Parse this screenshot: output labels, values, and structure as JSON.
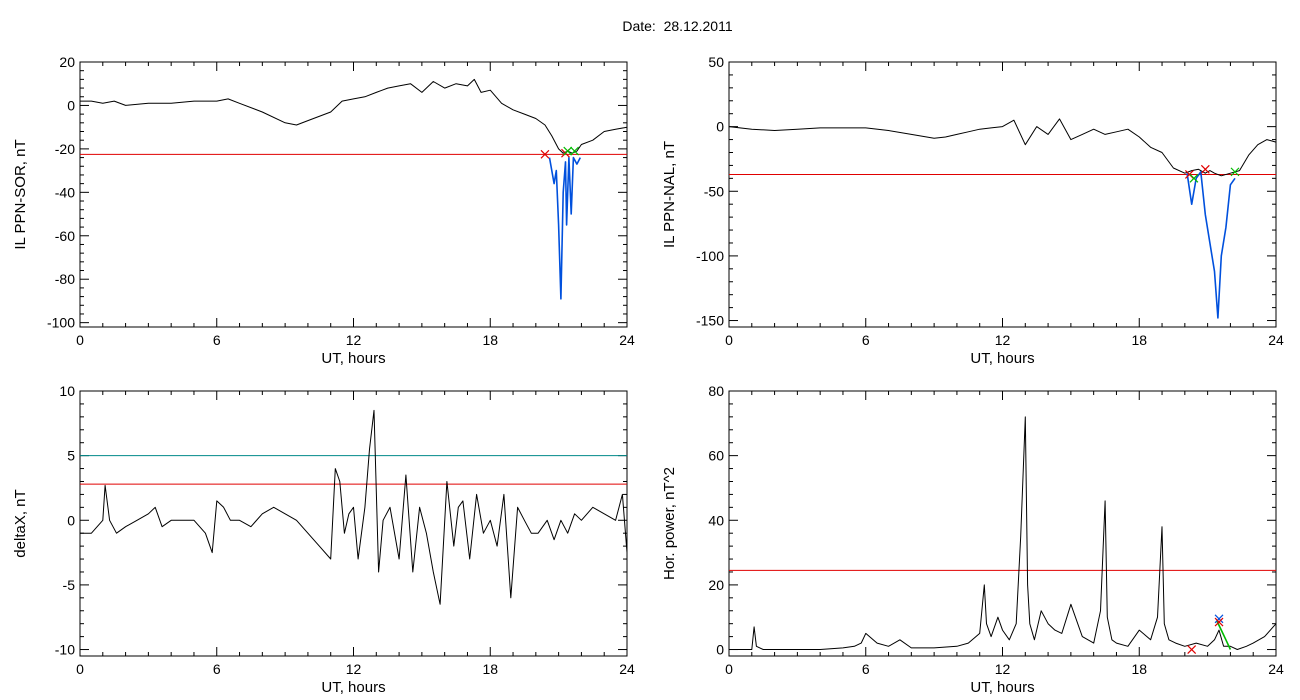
{
  "figure": {
    "title": "Date:  28.12.2011"
  },
  "chart_data": [
    {
      "type": "line",
      "ylabel": "IL PPN-SOR, nT",
      "xlabel": "UT, hours",
      "xlim": [
        0,
        24
      ],
      "ylim": [
        -102,
        20
      ],
      "xticks": [
        0,
        6,
        12,
        18,
        24
      ],
      "yticks": [
        20,
        0,
        -20,
        -40,
        -60,
        -80,
        -100
      ],
      "thresholds": [
        {
          "value": -22.5,
          "color": "#e00000"
        }
      ],
      "series": [
        {
          "color": "#000000",
          "x": [
            0,
            0.5,
            1,
            1.5,
            2,
            3,
            4,
            5,
            6,
            6.5,
            7,
            8,
            9,
            9.5,
            10,
            11,
            11.5,
            12,
            12.5,
            13,
            13.5,
            14,
            14.5,
            15,
            15.5,
            16,
            16.5,
            17,
            17.3,
            17.6,
            18,
            18.5,
            19,
            19.5,
            20,
            20.4,
            20.7,
            21,
            21.2,
            21.4,
            21.6,
            21.8,
            22,
            22.5,
            23,
            23.5,
            24
          ],
          "y": [
            2,
            2,
            1,
            2,
            0,
            1,
            1,
            2,
            2,
            3,
            1,
            -3,
            -8,
            -9,
            -7,
            -3,
            2,
            3,
            4,
            6,
            8,
            9,
            10,
            6,
            11,
            8,
            10,
            9,
            12,
            6,
            7,
            1,
            -2,
            -4,
            -6,
            -9,
            -14,
            -20,
            -22,
            -21,
            -22,
            -21,
            -18,
            -16,
            -12,
            -11,
            -10
          ]
        },
        {
          "color": "#0050dd",
          "x": [
            20.6,
            20.8,
            20.9,
            21.0,
            21.1,
            21.2,
            21.3,
            21.35,
            21.45,
            21.55,
            21.65,
            21.8,
            21.95
          ],
          "y": [
            -24,
            -36,
            -30,
            -55,
            -89,
            -40,
            -26,
            -55,
            -24,
            -50,
            -24,
            -27,
            -24
          ]
        }
      ],
      "markers": [
        {
          "x": 20.4,
          "y": -22.5,
          "color": "#e00000",
          "symbol": "x"
        },
        {
          "x": 21.3,
          "y": -22,
          "color": "#e00000",
          "symbol": "x"
        },
        {
          "x": 21.4,
          "y": -21,
          "color": "#00bb00",
          "symbol": "x"
        },
        {
          "x": 21.7,
          "y": -21,
          "color": "#00bb00",
          "symbol": "x"
        }
      ]
    },
    {
      "type": "line",
      "ylabel": "IL PPN-NAL, nT",
      "xlabel": "UT, hours",
      "xlim": [
        0,
        24
      ],
      "ylim": [
        -155,
        50
      ],
      "xticks": [
        0,
        6,
        12,
        18,
        24
      ],
      "yticks": [
        50,
        0,
        -50,
        -100,
        -150
      ],
      "thresholds": [
        {
          "value": -37,
          "color": "#e00000"
        }
      ],
      "series": [
        {
          "color": "#000000",
          "x": [
            0,
            1,
            2,
            3,
            4,
            5,
            6,
            7,
            8,
            9,
            9.5,
            10,
            10.5,
            11,
            11.5,
            12,
            12.5,
            13,
            13.5,
            14,
            14.5,
            15,
            15.5,
            16,
            16.5,
            17,
            17.5,
            18,
            18.5,
            19,
            19.5,
            20,
            20.3,
            20.6,
            20.9,
            21.1,
            21.3,
            21.6,
            22,
            22.4,
            22.8,
            23.2,
            23.6,
            24
          ],
          "y": [
            0,
            -2,
            -3,
            -2,
            -1,
            -1,
            -1,
            -3,
            -6,
            -9,
            -8,
            -6,
            -4,
            -2,
            -1,
            0,
            5,
            -14,
            0,
            -6,
            6,
            -10,
            -6,
            -2,
            -6,
            -4,
            -2,
            -8,
            -16,
            -20,
            -32,
            -36,
            -34,
            -33,
            -36,
            -34,
            -36,
            -38,
            -36,
            -34,
            -22,
            -14,
            -10,
            -12
          ]
        },
        {
          "color": "#0050dd",
          "x": [
            20.1,
            20.3,
            20.5,
            20.7,
            20.9,
            21.1,
            21.3,
            21.45,
            21.6,
            21.8,
            22.0,
            22.2
          ],
          "y": [
            -36,
            -60,
            -40,
            -35,
            -68,
            -90,
            -112,
            -148,
            -100,
            -78,
            -45,
            -40
          ]
        }
      ],
      "markers": [
        {
          "x": 20.2,
          "y": -37,
          "color": "#e00000",
          "symbol": "x"
        },
        {
          "x": 20.4,
          "y": -40,
          "color": "#00bb00",
          "symbol": "x"
        },
        {
          "x": 20.9,
          "y": -33,
          "color": "#e00000",
          "symbol": "x"
        },
        {
          "x": 22.2,
          "y": -35,
          "color": "#00bb00",
          "symbol": "x"
        }
      ]
    },
    {
      "type": "line",
      "ylabel": "deltaX, nT",
      "xlabel": "UT, hours",
      "xlim": [
        0,
        24
      ],
      "ylim": [
        -10.5,
        10
      ],
      "xticks": [
        0,
        6,
        12,
        18,
        24
      ],
      "yticks": [
        10,
        5,
        0,
        -5,
        -10
      ],
      "thresholds": [
        {
          "value": 5,
          "color": "#008a8a"
        },
        {
          "value": 2.8,
          "color": "#e00000"
        }
      ],
      "series": [
        {
          "color": "#000000",
          "x": [
            0,
            0.5,
            1,
            1.1,
            1.3,
            1.6,
            2,
            2.5,
            3,
            3.3,
            3.6,
            4,
            5,
            5.5,
            5.8,
            6,
            6.3,
            6.6,
            7,
            7.5,
            8,
            8.5,
            9,
            9.5,
            10,
            10.5,
            11,
            11.2,
            11.4,
            11.6,
            11.8,
            12,
            12.2,
            12.5,
            12.7,
            12.9,
            13.1,
            13.3,
            13.6,
            14,
            14.3,
            14.6,
            14.9,
            15.2,
            15.5,
            15.8,
            16.1,
            16.4,
            16.6,
            16.8,
            17.1,
            17.4,
            17.7,
            18,
            18.3,
            18.6,
            18.9,
            19.2,
            19.5,
            19.8,
            20.1,
            20.5,
            20.8,
            21.1,
            21.4,
            21.7,
            22,
            22.5,
            23,
            23.5,
            23.8,
            24
          ],
          "y": [
            -1,
            -1,
            0,
            2.7,
            0,
            -1,
            -0.5,
            0,
            0.5,
            1,
            -0.5,
            0,
            0,
            -1,
            -2.5,
            1.5,
            1,
            0,
            0,
            -0.5,
            0.5,
            1,
            0.5,
            0,
            -1,
            -2,
            -3,
            4,
            3,
            -1,
            0.5,
            1,
            -3,
            1,
            5.5,
            8.5,
            -4,
            0,
            1,
            -3,
            3.5,
            -4,
            1,
            -1,
            -4,
            -6.5,
            3,
            -2,
            1,
            1.5,
            -3,
            2,
            -1,
            0,
            -2,
            2,
            -6,
            1,
            0,
            -1,
            -1,
            0,
            -1.5,
            0,
            -1,
            0.5,
            0,
            1,
            0.5,
            0,
            2,
            -2.5
          ]
        }
      ],
      "markers": []
    },
    {
      "type": "line",
      "ylabel": "Hor. power, nT^2",
      "xlabel": "UT, hours",
      "xlim": [
        0,
        24
      ],
      "ylim": [
        -2,
        80
      ],
      "xticks": [
        0,
        6,
        12,
        18,
        24
      ],
      "yticks": [
        80,
        60,
        40,
        20,
        0
      ],
      "thresholds": [
        {
          "value": 24.5,
          "color": "#e00000"
        }
      ],
      "series": [
        {
          "color": "#000000",
          "x": [
            0,
            0.5,
            1,
            1.1,
            1.2,
            1.5,
            2,
            3,
            4,
            5,
            5.5,
            5.8,
            6,
            6.5,
            7,
            7.5,
            8,
            9,
            10,
            10.5,
            11,
            11.2,
            11.3,
            11.5,
            11.8,
            12,
            12.3,
            12.6,
            12.8,
            13.0,
            13.1,
            13.2,
            13.4,
            13.7,
            14,
            14.3,
            14.6,
            15,
            15.5,
            16,
            16.3,
            16.5,
            16.6,
            16.8,
            17,
            17.5,
            18,
            18.5,
            18.8,
            19.0,
            19.1,
            19.3,
            19.6,
            20,
            20.5,
            21,
            21.3,
            21.5,
            21.7,
            22,
            22.3,
            22.7,
            23,
            23.5,
            24
          ],
          "y": [
            0,
            0,
            0,
            7,
            1,
            0,
            0,
            0,
            0,
            0.5,
            1,
            2,
            5,
            2,
            1,
            3,
            0.5,
            0.5,
            1,
            2,
            5,
            20,
            8,
            4,
            10,
            6,
            3,
            8,
            35,
            72,
            20,
            8,
            3,
            12,
            8,
            6,
            5,
            14,
            4,
            2,
            12,
            46,
            10,
            3,
            2,
            1,
            6,
            3,
            10,
            38,
            8,
            3,
            2,
            1,
            2,
            1,
            3,
            6,
            1,
            1,
            0,
            1,
            2,
            4,
            8
          ]
        },
        {
          "color": "#00bb00",
          "x": [
            21.4,
            21.6,
            21.8,
            22.0
          ],
          "y": [
            9,
            6,
            3,
            0
          ]
        }
      ],
      "markers": [
        {
          "x": 20.3,
          "y": 0,
          "color": "#e00000",
          "symbol": "x"
        },
        {
          "x": 21.5,
          "y": 9.5,
          "color": "#0050dd",
          "symbol": "x"
        },
        {
          "x": 21.5,
          "y": 8.5,
          "color": "#e00000",
          "symbol": "x"
        }
      ]
    }
  ]
}
